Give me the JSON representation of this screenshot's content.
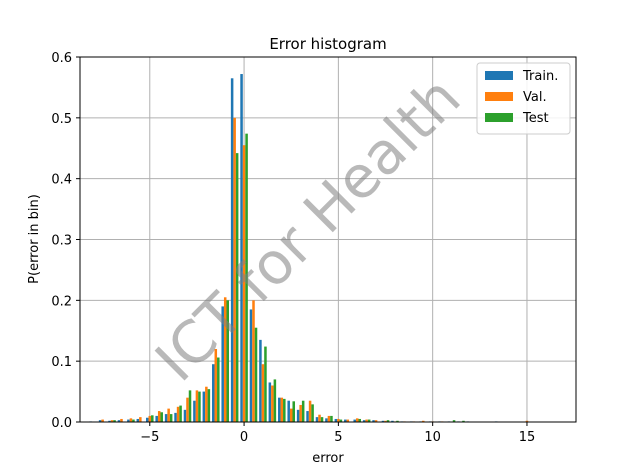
{
  "chart_data": {
    "type": "bar",
    "title": "Error histogram",
    "xlabel": "error",
    "ylabel": "P(error in bin)",
    "xlim": [
      -8.7,
      17.6
    ],
    "ylim": [
      0,
      0.6
    ],
    "x_ticks": [
      -5,
      0,
      5,
      10,
      15
    ],
    "x_tick_labels": [
      "−5",
      "0",
      "5",
      "10",
      "15"
    ],
    "y_ticks": [
      0.0,
      0.1,
      0.2,
      0.3,
      0.4,
      0.5,
      0.6
    ],
    "y_tick_labels": [
      "0.0",
      "0.1",
      "0.2",
      "0.3",
      "0.4",
      "0.5",
      "0.6"
    ],
    "grid": true,
    "legend_position": "top-right",
    "bin_width": 0.5,
    "x": [
      -8,
      -7.5,
      -7,
      -6.5,
      -6,
      -5.5,
      -5,
      -4.5,
      -4,
      -3.5,
      -3,
      -2.5,
      -2,
      -1.5,
      -1,
      -0.5,
      0,
      0.5,
      1,
      1.5,
      2,
      2.5,
      3,
      3.5,
      4,
      4.5,
      5,
      5.5,
      6,
      6.5,
      7,
      7.5,
      8,
      8.5,
      9,
      9.5,
      10,
      10.5,
      11,
      11.5,
      12,
      12.5,
      13,
      13.5,
      14,
      14.5,
      15,
      15.5,
      16,
      16.5,
      17
    ],
    "series": [
      {
        "name": "Train.",
        "color": "#1f77b4",
        "values": [
          0.001,
          0.003,
          0.002,
          0.003,
          0.004,
          0.005,
          0.007,
          0.01,
          0.013,
          0.015,
          0.02,
          0.035,
          0.05,
          0.095,
          0.19,
          0.565,
          0.572,
          0.185,
          0.135,
          0.065,
          0.04,
          0.035,
          0.02,
          0.018,
          0.008,
          0.006,
          0.005,
          0.004,
          0.004,
          0.003,
          0.003,
          0.002,
          0.002,
          0.001,
          0.001,
          0.001,
          0.001,
          0.001,
          0.001,
          0.001,
          0.001,
          0.0,
          0.0,
          0.001,
          0.0,
          0.0,
          0.0,
          0.0,
          0.0,
          0.0,
          0.0
        ]
      },
      {
        "name": "Val.",
        "color": "#ff7f0e",
        "values": [
          0.0,
          0.004,
          0.003,
          0.005,
          0.006,
          0.008,
          0.01,
          0.018,
          0.022,
          0.025,
          0.04,
          0.052,
          0.058,
          0.12,
          0.205,
          0.5,
          0.455,
          0.2,
          0.095,
          0.06,
          0.04,
          0.022,
          0.028,
          0.035,
          0.012,
          0.01,
          0.005,
          0.004,
          0.006,
          0.004,
          0.003,
          0.002,
          0.001,
          0.001,
          0.001,
          0.002,
          0.001,
          0.001,
          0.0,
          0.0,
          0.0,
          0.0,
          0.0,
          0.0,
          0.0,
          0.0,
          0.002,
          0.0,
          0.0,
          0.0,
          0.0
        ]
      },
      {
        "name": "Test",
        "color": "#2ca02c",
        "values": [
          0.0,
          0.0,
          0.003,
          0.0,
          0.004,
          0.0,
          0.011,
          0.016,
          0.013,
          0.027,
          0.052,
          0.05,
          0.054,
          0.106,
          0.2,
          0.442,
          0.474,
          0.155,
          0.124,
          0.07,
          0.038,
          0.034,
          0.035,
          0.029,
          0.008,
          0.01,
          0.004,
          0.0,
          0.005,
          0.004,
          0.0,
          0.003,
          0.002,
          0.0,
          0.0,
          0.0,
          0.0,
          0.0,
          0.003,
          0.002,
          0.0,
          0.0,
          0.0,
          0.0,
          0.0,
          0.0,
          0.0,
          0.0,
          0.0,
          0.0,
          0.0
        ]
      }
    ]
  },
  "watermark": {
    "text": "ICT for Health",
    "color": "#7f7f7f"
  }
}
